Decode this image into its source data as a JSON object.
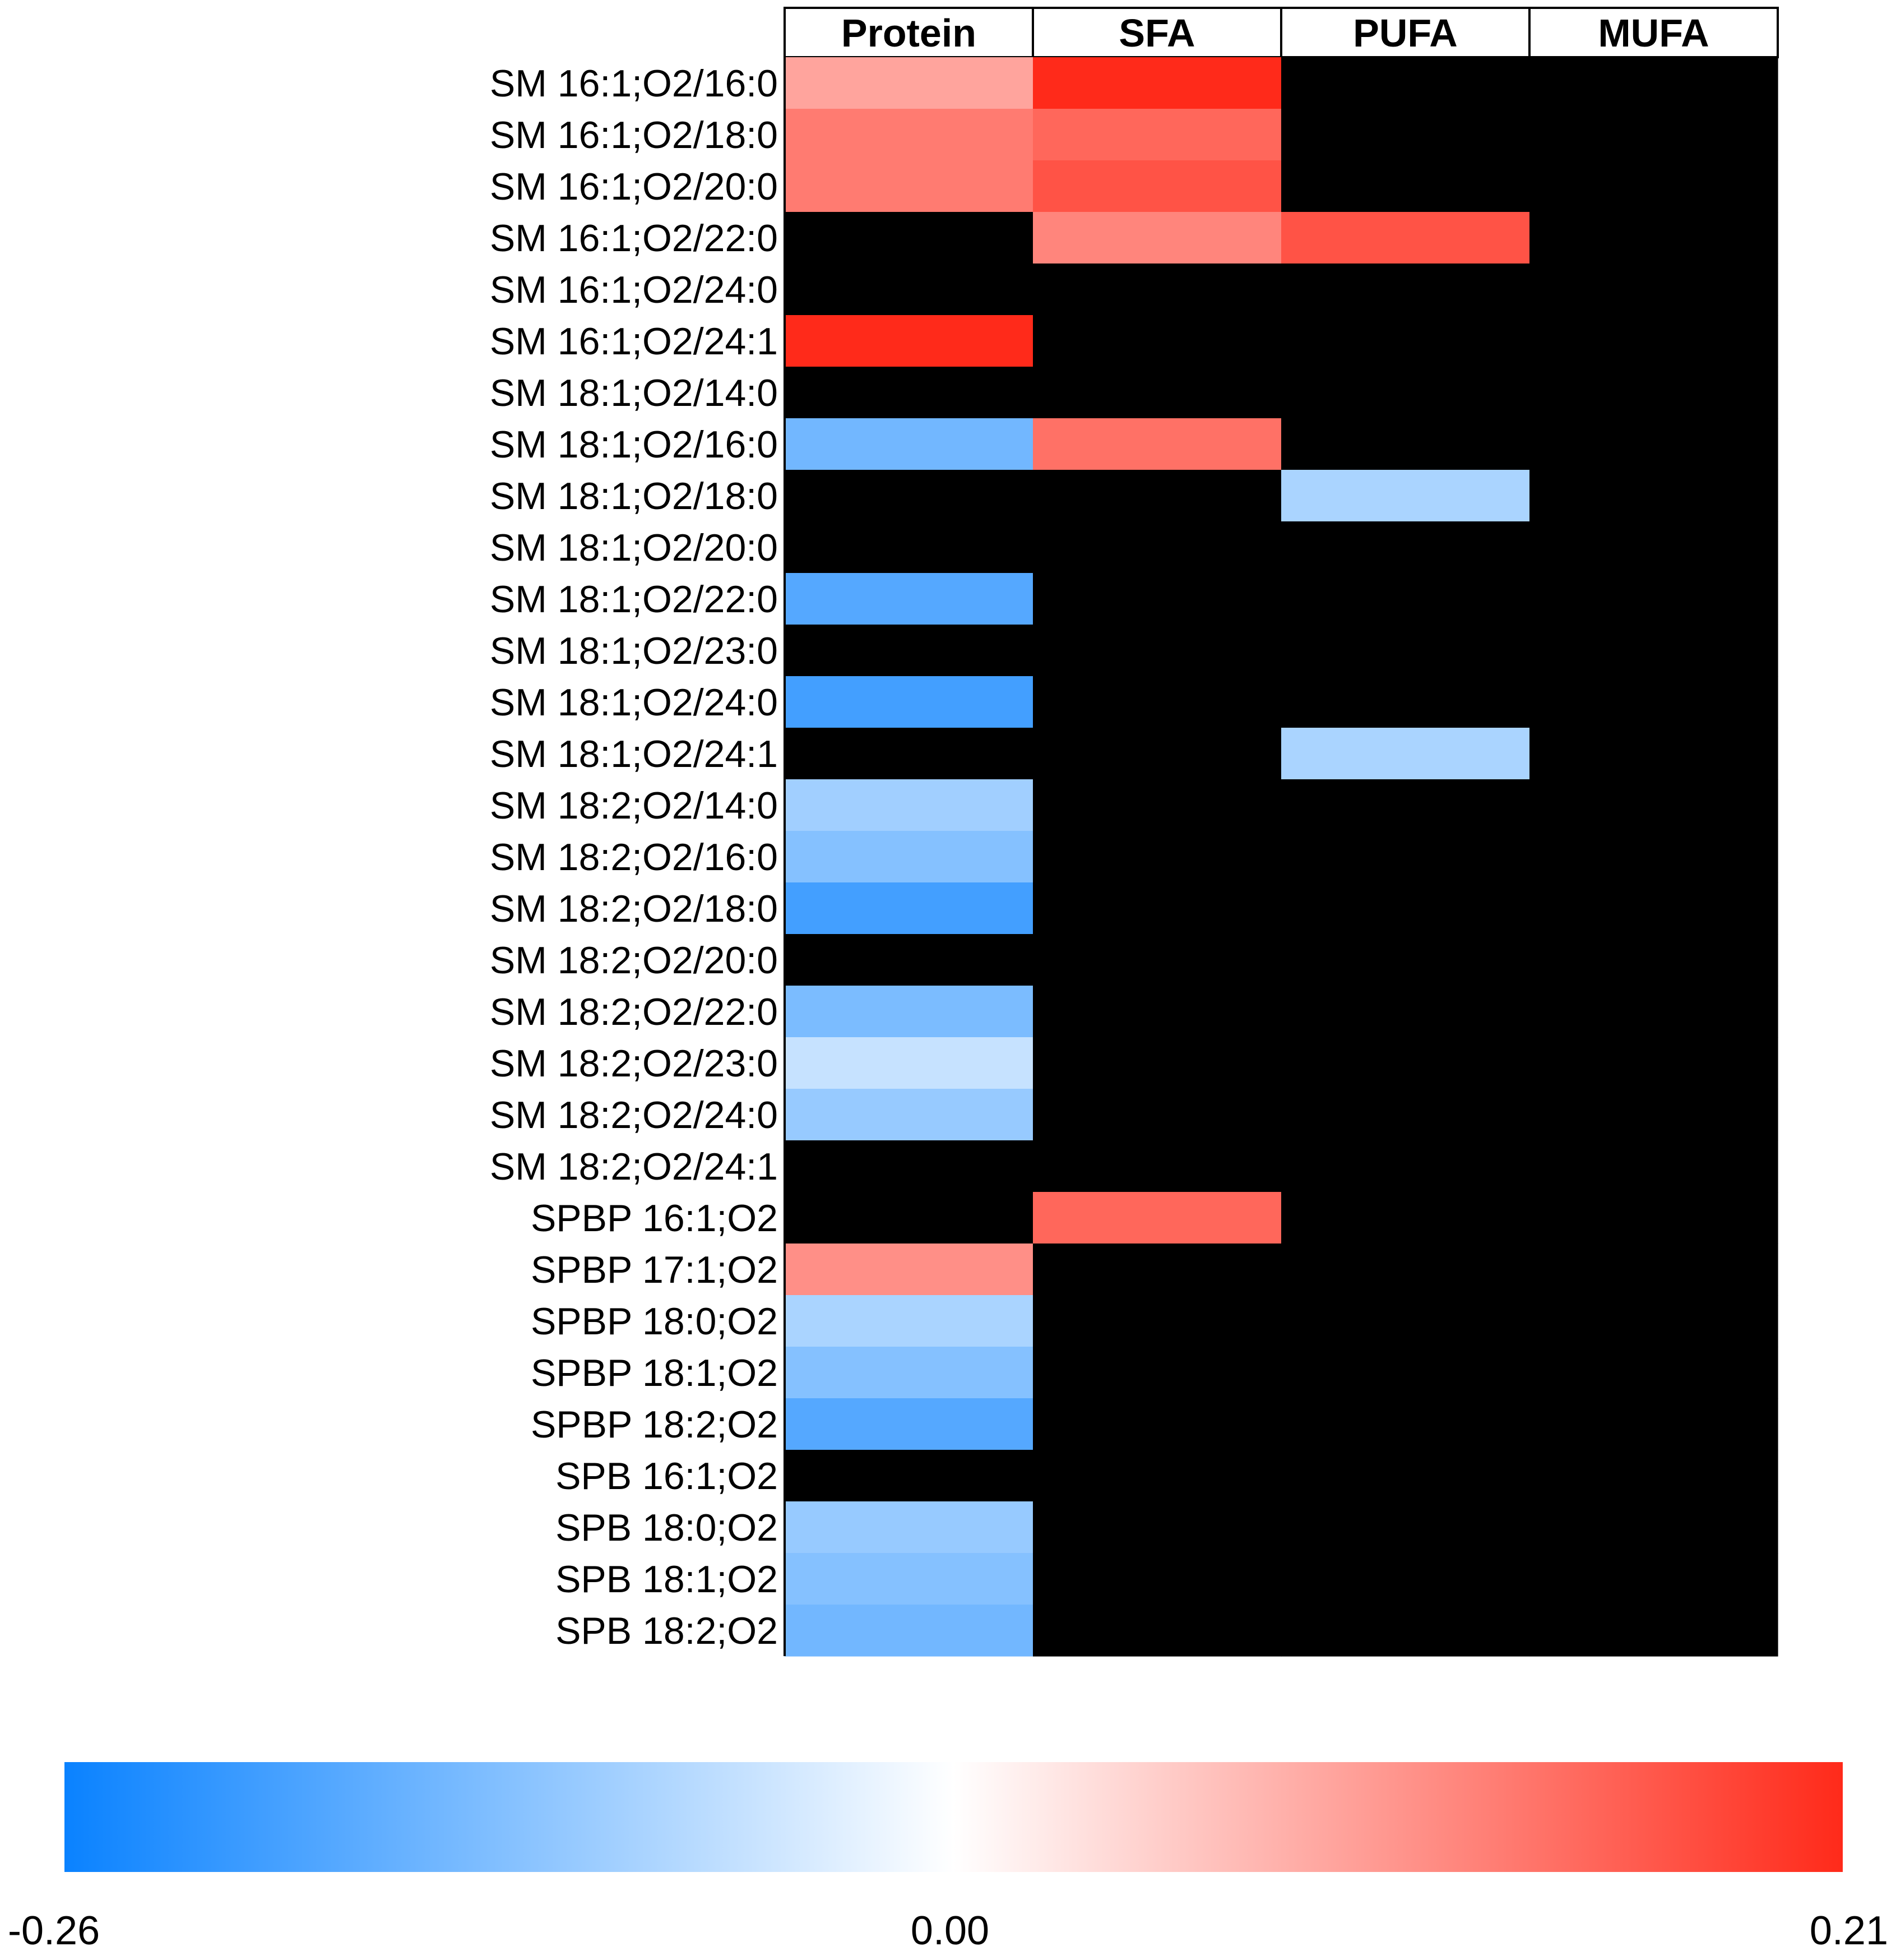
{
  "chart_data": {
    "type": "heatmap",
    "title": "",
    "columns": [
      "Protein",
      "SFA",
      "PUFA",
      "MUFA"
    ],
    "rows": [
      "SM 16:1;O2/16:0",
      "SM 16:1;O2/18:0",
      "SM 16:1;O2/20:0",
      "SM 16:1;O2/22:0",
      "SM 16:1;O2/24:0",
      "SM 16:1;O2/24:1",
      "SM 18:1;O2/14:0",
      "SM 18:1;O2/16:0",
      "SM 18:1;O2/18:0",
      "SM 18:1;O2/20:0",
      "SM 18:1;O2/22:0",
      "SM 18:1;O2/23:0",
      "SM 18:1;O2/24:0",
      "SM 18:1;O2/24:1",
      "SM 18:2;O2/14:0",
      "SM 18:2;O2/16:0",
      "SM 18:2;O2/18:0",
      "SM 18:2;O2/20:0",
      "SM 18:2;O2/22:0",
      "SM 18:2;O2/23:0",
      "SM 18:2;O2/24:0",
      "SM 18:2;O2/24:1",
      "SPBP 16:1;O2",
      "SPBP 17:1;O2",
      "SPBP 18:0;O2",
      "SPBP 18:1;O2",
      "SPBP 18:2;O2",
      "SPB 16:1;O2",
      "SPB 18:0;O2",
      "SPB 18:1;O2",
      "SPB 18:2;O2"
    ],
    "values": [
      [
        0.09,
        0.21,
        null,
        null
      ],
      [
        0.13,
        0.15,
        null,
        null
      ],
      [
        0.13,
        0.17,
        null,
        null
      ],
      [
        null,
        0.12,
        0.17,
        null
      ],
      [
        null,
        null,
        null,
        null
      ],
      [
        0.21,
        null,
        null,
        null
      ],
      [
        null,
        null,
        null,
        null
      ],
      [
        -0.15,
        0.14,
        null,
        null
      ],
      [
        null,
        null,
        -0.09,
        null
      ],
      [
        null,
        null,
        null,
        null
      ],
      [
        -0.18,
        null,
        null,
        null
      ],
      [
        null,
        null,
        null,
        null
      ],
      [
        -0.2,
        null,
        null,
        null
      ],
      [
        null,
        null,
        -0.09,
        null
      ],
      [
        -0.1,
        null,
        null,
        null
      ],
      [
        -0.13,
        null,
        null,
        null
      ],
      [
        -0.2,
        null,
        null,
        null
      ],
      [
        null,
        null,
        null,
        null
      ],
      [
        -0.14,
        null,
        null,
        null
      ],
      [
        -0.06,
        null,
        null,
        null
      ],
      [
        -0.11,
        null,
        null,
        null
      ],
      [
        null,
        null,
        null,
        null
      ],
      [
        null,
        0.15,
        null,
        null
      ],
      [
        0.11,
        null,
        null,
        null
      ],
      [
        -0.09,
        null,
        null,
        null
      ],
      [
        -0.13,
        null,
        null,
        null
      ],
      [
        -0.18,
        null,
        null,
        null
      ],
      [
        null,
        null,
        null,
        null
      ],
      [
        -0.11,
        null,
        null,
        null
      ],
      [
        -0.13,
        null,
        null,
        null
      ],
      [
        -0.15,
        null,
        null,
        null
      ]
    ],
    "missing_color": "#000000",
    "colorscale": {
      "min": -0.26,
      "mid": 0.0,
      "max": 0.21,
      "min_color": "#0a82ff",
      "mid_color": "#ffffff",
      "max_color": "#ff2a1a",
      "tick_labels": [
        "-0.26",
        "0.00",
        "0.21"
      ]
    }
  }
}
